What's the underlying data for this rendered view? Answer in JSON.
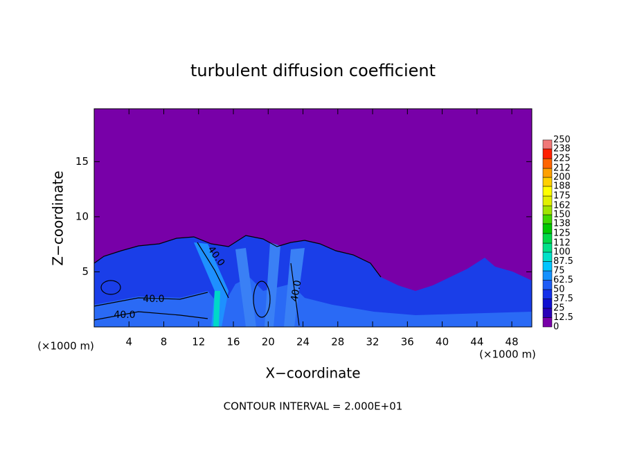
{
  "chart_data": {
    "type": "contour",
    "title": "turbulent diffusion coefficient",
    "x_label": "X−coordinate",
    "y_label": "Z−coordinate",
    "x_unit": "(×1000 m)",
    "y_unit": "(×1000 m)",
    "xlim": [
      0,
      50.3
    ],
    "xticks": [
      4,
      8,
      12,
      16,
      20,
      24,
      28,
      32,
      36,
      40,
      44,
      48
    ],
    "ylim": [
      0,
      19.8
    ],
    "yticks": [
      5,
      10,
      15
    ],
    "background_color": "#7800a8",
    "colorbar": {
      "ticks": [
        0,
        12.5,
        25,
        37.5,
        50,
        62.5,
        75,
        87.5,
        100,
        112,
        125,
        138,
        150,
        162,
        175,
        188,
        200,
        212,
        225,
        238,
        250
      ],
      "colors": [
        "#7800a8",
        "#2800b8",
        "#1010d0",
        "#1530e8",
        "#1e5cf5",
        "#1490ff",
        "#00c4ff",
        "#00e0c8",
        "#00e088",
        "#00d848",
        "#00c800",
        "#40d800",
        "#a0e400",
        "#e0f000",
        "#ffff00",
        "#ffd000",
        "#ffa000",
        "#ff6400",
        "#ff2000",
        "#f07878"
      ]
    },
    "contour_labels": [
      "40.0",
      "40.0",
      "40.0",
      "40.0"
    ],
    "footer": "CONTOUR INTERVAL = 2.000E+01"
  }
}
